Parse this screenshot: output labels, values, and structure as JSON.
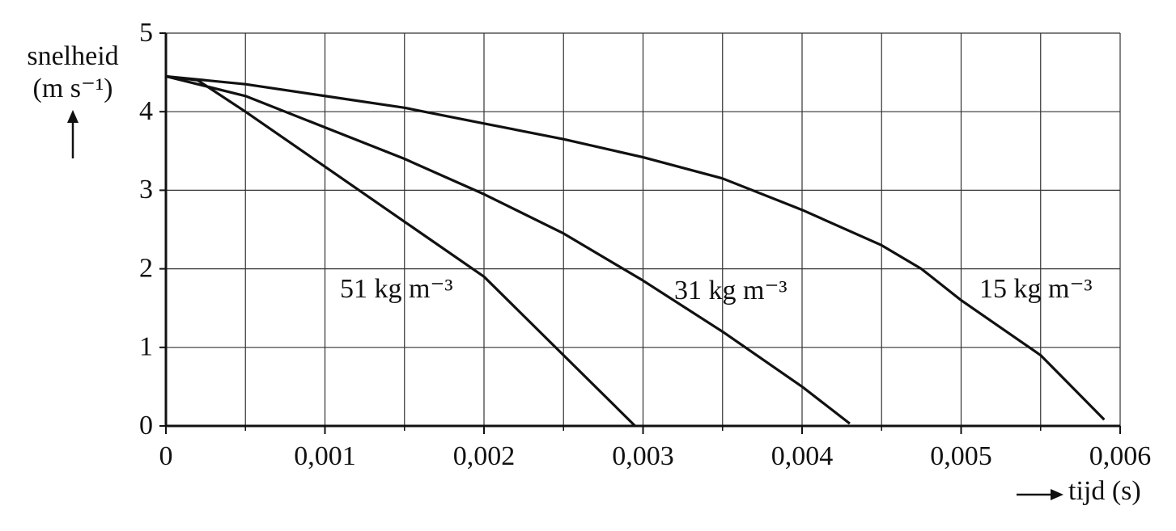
{
  "chart_data": {
    "type": "line",
    "ylabel": [
      "snelheid",
      "(m s⁻¹)"
    ],
    "xlabel": "tijd (s)",
    "xlim": [
      0,
      0.006
    ],
    "ylim": [
      0,
      5
    ],
    "xticks": [
      0,
      {
        "value": 0.001,
        "label": "0,001"
      },
      {
        "value": 0.002,
        "label": "0,002"
      },
      {
        "value": 0.003,
        "label": "0,003"
      },
      {
        "value": 0.004,
        "label": "0,004"
      },
      {
        "value": 0.005,
        "label": "0,005"
      },
      {
        "value": 0.006,
        "label": "0,006"
      }
    ],
    "xminorticks": [
      0.0005,
      0.0015,
      0.0025,
      0.0035,
      0.0045,
      0.0055
    ],
    "yticks": [
      0,
      1,
      2,
      3,
      4,
      5
    ],
    "grid": true,
    "series": [
      {
        "name": "51 kg m⁻³",
        "color": "#111111",
        "x": [
          0,
          0.0002,
          0.0005,
          0.001,
          0.0015,
          0.002,
          0.0025,
          0.00295
        ],
        "values": [
          4.45,
          4.4,
          4.0,
          3.3,
          2.6,
          1.9,
          0.9,
          0
        ]
      },
      {
        "name": "31 kg m⁻³",
        "color": "#111111",
        "x": [
          0,
          0.0005,
          0.001,
          0.0015,
          0.002,
          0.0025,
          0.003,
          0.0035,
          0.004,
          0.0043
        ],
        "values": [
          4.45,
          4.2,
          3.8,
          3.4,
          2.95,
          2.45,
          1.85,
          1.2,
          0.5,
          0.03
        ]
      },
      {
        "name": "15 kg m⁻³",
        "color": "#111111",
        "x": [
          0,
          0.0005,
          0.001,
          0.0015,
          0.002,
          0.0025,
          0.003,
          0.0035,
          0.004,
          0.0045,
          0.00475,
          0.005,
          0.0055,
          0.0059
        ],
        "values": [
          4.45,
          4.35,
          4.2,
          4.05,
          3.85,
          3.65,
          3.42,
          3.15,
          2.75,
          2.3,
          2.0,
          1.6,
          0.9,
          0.08
        ]
      }
    ]
  }
}
